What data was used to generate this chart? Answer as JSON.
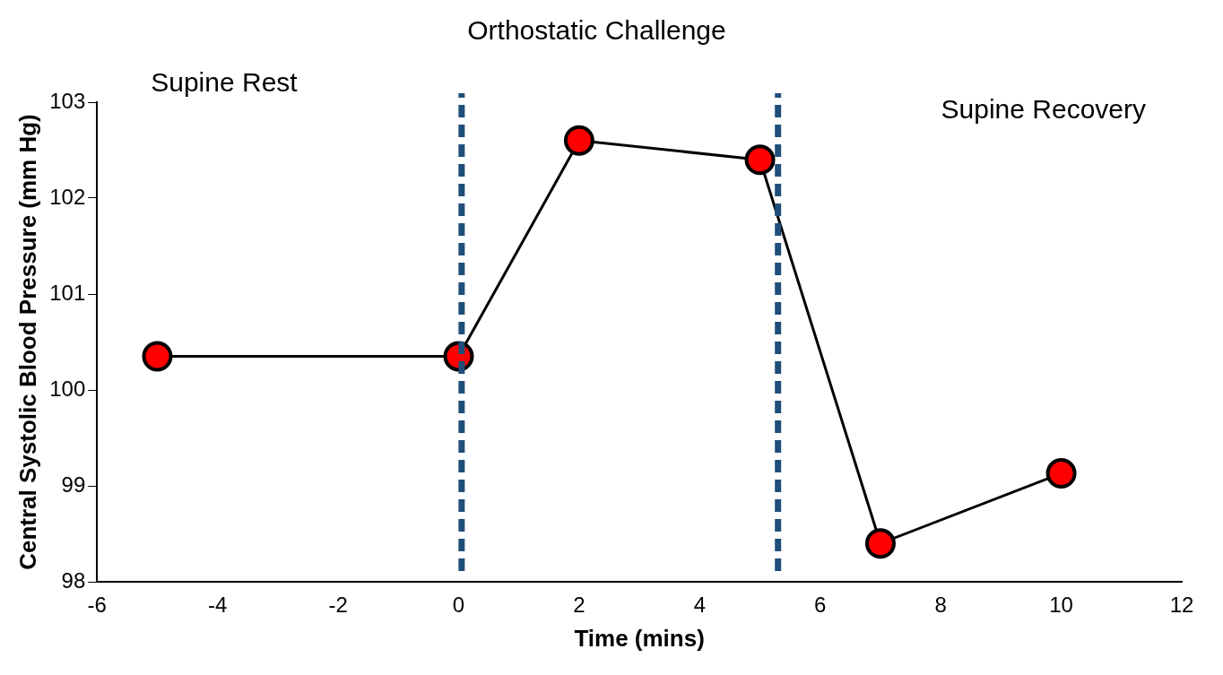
{
  "chart_data": {
    "type": "line",
    "title": "Orthostatic Challenge",
    "xlabel": "Time (mins)",
    "ylabel": "Central Systolic Blood Pressure (mm Hg)",
    "x": [
      -5,
      0,
      2,
      5,
      7,
      10
    ],
    "series": [
      {
        "color": "#ff0000",
        "values": [
          100.35,
          100.35,
          102.6,
          102.4,
          98.4,
          99.13
        ]
      }
    ],
    "xlim": [
      -6,
      12
    ],
    "xticks": [
      -6,
      -4,
      -2,
      0,
      2,
      4,
      6,
      8,
      10,
      12
    ],
    "ylim": [
      98,
      103
    ],
    "yticks": [
      98,
      99,
      100,
      101,
      102,
      103
    ],
    "ref_lines": [
      {
        "axis": "x",
        "value": 0.05,
        "color": "#1f4e79",
        "line_style": "dashed"
      },
      {
        "axis": "x",
        "value": 5.3,
        "color": "#1f4e79",
        "line_style": "dashed"
      }
    ],
    "annotations": [
      "Supine Rest",
      "Supine Recovery"
    ],
    "marker": "circle",
    "line_style": "solid",
    "grid": false,
    "legend": false
  }
}
